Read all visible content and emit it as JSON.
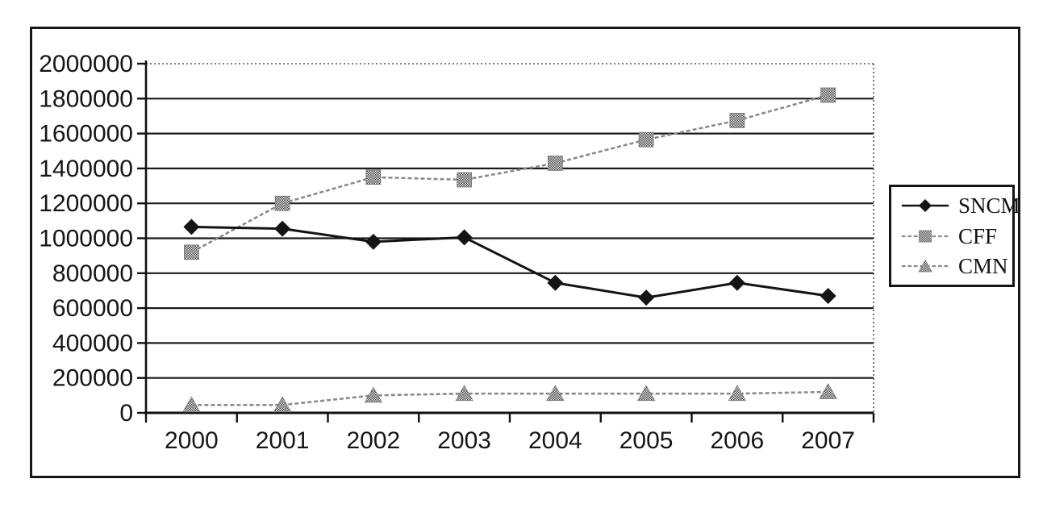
{
  "figure": {
    "background": "#ffffff",
    "frame_border_color": "#161616"
  },
  "chart_data": {
    "type": "line",
    "title": "",
    "xlabel": "",
    "ylabel": "",
    "grid": true,
    "legend_position": "right",
    "categories": [
      "2000",
      "2001",
      "2002",
      "2003",
      "2004",
      "2005",
      "2006",
      "2007"
    ],
    "x": [
      2000,
      2001,
      2002,
      2003,
      2004,
      2005,
      2006,
      2007
    ],
    "series": [
      {
        "name": "SNCM",
        "marker": "diamond",
        "line": "solid",
        "color": "#141414",
        "values": [
          1065000,
          1055000,
          980000,
          1005000,
          745000,
          660000,
          745000,
          670000
        ]
      },
      {
        "name": "CFF",
        "marker": "square",
        "line": "dashed",
        "color": "#8b8b8b",
        "values": [
          920000,
          1200000,
          1350000,
          1335000,
          1430000,
          1565000,
          1675000,
          1820000
        ]
      },
      {
        "name": "CMN",
        "marker": "triangle",
        "line": "dashed",
        "color": "#8b8b8b",
        "values": [
          45000,
          45000,
          100000,
          110000,
          110000,
          110000,
          110000,
          120000
        ]
      }
    ],
    "yaxis": {
      "min": 0,
      "max": 2000000,
      "step": 200000,
      "tick_labels": [
        "0",
        "200000",
        "400000",
        "600000",
        "800000",
        "1000000",
        "1200000",
        "1400000",
        "1600000",
        "1800000",
        "2000000"
      ]
    },
    "colors": {
      "axis": "#111111",
      "gridline": "#1b1b1b",
      "dotted_line": "#555555",
      "text": "#161616"
    }
  }
}
